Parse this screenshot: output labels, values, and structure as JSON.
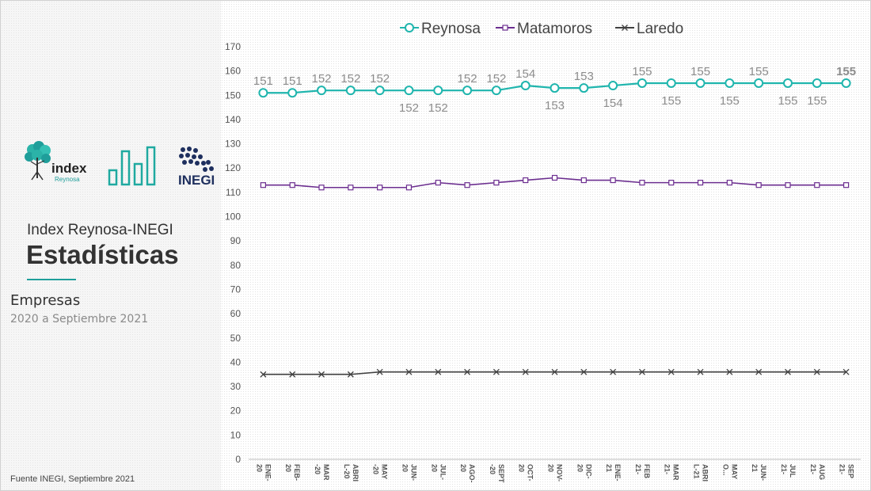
{
  "branding": {
    "index_logo_word": "index",
    "index_logo_sub": "Reynosa",
    "inegi_logo_word": "INEGI"
  },
  "header": {
    "subtitle": "Index Reynosa-INEGI",
    "title": "Estadísticas"
  },
  "section": {
    "name": "Empresas",
    "range": "2020 a Septiembre 2021"
  },
  "footer": {
    "source": "Fuente INEGI, Septiembre 2021"
  },
  "colors": {
    "reynosa": "#1fb5ad",
    "matamoros": "#6b2d8f",
    "laredo": "#404040",
    "accent": "#1f9e9a"
  },
  "chart_data": {
    "type": "line",
    "categories": [
      [
        "ENE-",
        "20"
      ],
      [
        "FEB-",
        "20"
      ],
      [
        "MAR",
        "-20"
      ],
      [
        "ABRI",
        "L-20"
      ],
      [
        "MAY",
        "-20"
      ],
      [
        "JUN-",
        "20"
      ],
      [
        "JUL-",
        "20"
      ],
      [
        "AGO-",
        "20"
      ],
      [
        "SEPT",
        "-20"
      ],
      [
        "OCT-",
        "20"
      ],
      [
        "NOV-",
        "20"
      ],
      [
        "DIC-",
        "20"
      ],
      [
        "ENE-",
        "21"
      ],
      [
        "FEB",
        "21-"
      ],
      [
        "MAR",
        "21-"
      ],
      [
        "ABRI",
        "L-21"
      ],
      [
        "MAY",
        "O..."
      ],
      [
        "JUN-",
        "21"
      ],
      [
        "JUL",
        "21-"
      ],
      [
        "AUG",
        "21-"
      ],
      [
        "SEP",
        "21-"
      ]
    ],
    "ylim": [
      0,
      170
    ],
    "yticks": [
      0,
      10,
      20,
      30,
      40,
      50,
      60,
      70,
      80,
      90,
      100,
      110,
      120,
      130,
      140,
      150,
      160,
      170
    ],
    "legend_position": "top",
    "series": [
      {
        "name": "Reynosa",
        "color_key": "reynosa",
        "marker": "circle",
        "values": [
          151,
          151,
          152,
          152,
          152,
          152,
          152,
          152,
          152,
          154,
          153,
          153,
          154,
          155,
          155,
          155,
          155,
          155,
          155,
          155,
          155
        ],
        "data_labels": [
          "151",
          "151",
          "152",
          "152",
          "152",
          "152",
          "152",
          "152",
          "152",
          "154",
          "153",
          "153",
          "154",
          "155",
          "155",
          "155",
          "155",
          "155",
          "155",
          "155",
          "155"
        ]
      },
      {
        "name": "Matamoros",
        "color_key": "matamoros",
        "marker": "square",
        "values": [
          113,
          113,
          112,
          112,
          112,
          112,
          114,
          113,
          114,
          115,
          116,
          115,
          115,
          114,
          114,
          114,
          114,
          113,
          113,
          113,
          113
        ]
      },
      {
        "name": "Laredo",
        "color_key": "laredo",
        "marker": "x",
        "values": [
          35,
          35,
          35,
          35,
          36,
          36,
          36,
          36,
          36,
          36,
          36,
          36,
          36,
          36,
          36,
          36,
          36,
          36,
          36,
          36,
          36
        ]
      }
    ]
  }
}
